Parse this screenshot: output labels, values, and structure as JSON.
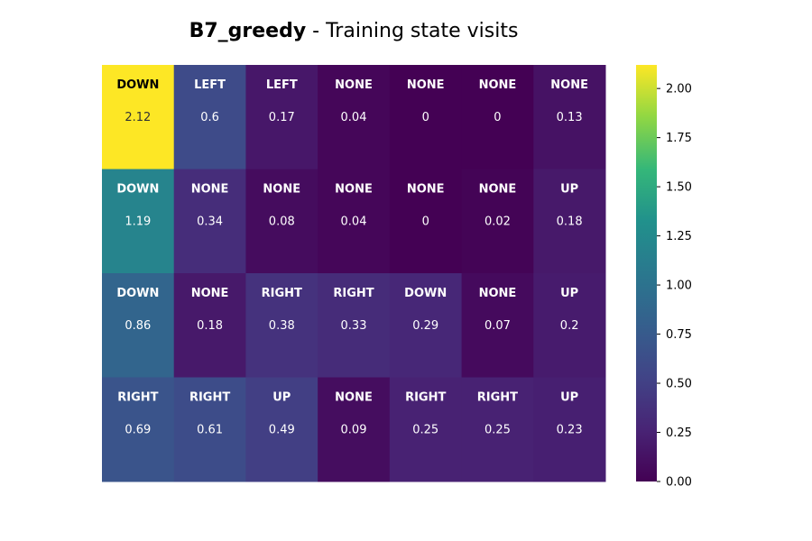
{
  "chart_data": {
    "type": "heatmap",
    "title_bold": "B7_greedy",
    "title_rest": " - Training state visits",
    "rows": 4,
    "cols": 7,
    "actions": [
      [
        "DOWN",
        "LEFT",
        "LEFT",
        "NONE",
        "NONE",
        "NONE",
        "NONE"
      ],
      [
        "DOWN",
        "NONE",
        "NONE",
        "NONE",
        "NONE",
        "NONE",
        "UP"
      ],
      [
        "DOWN",
        "NONE",
        "RIGHT",
        "RIGHT",
        "DOWN",
        "NONE",
        "UP"
      ],
      [
        "RIGHT",
        "RIGHT",
        "UP",
        "NONE",
        "RIGHT",
        "RIGHT",
        "UP"
      ]
    ],
    "values": [
      [
        2.12,
        0.6,
        0.17,
        0.04,
        0,
        0,
        0.13
      ],
      [
        1.19,
        0.34,
        0.08,
        0.04,
        0,
        0.02,
        0.18
      ],
      [
        0.86,
        0.18,
        0.38,
        0.33,
        0.29,
        0.07,
        0.2
      ],
      [
        0.69,
        0.61,
        0.49,
        0.09,
        0.25,
        0.25,
        0.23
      ]
    ],
    "value_labels": [
      [
        "2.12",
        "0.6",
        "0.17",
        "0.04",
        "0",
        "0",
        "0.13"
      ],
      [
        "1.19",
        "0.34",
        "0.08",
        "0.04",
        "0",
        "0.02",
        "0.18"
      ],
      [
        "0.86",
        "0.18",
        "0.38",
        "0.33",
        "0.29",
        "0.07",
        "0.2"
      ],
      [
        "0.69",
        "0.61",
        "0.49",
        "0.09",
        "0.25",
        "0.25",
        "0.23"
      ]
    ],
    "colormap": "viridis",
    "vmin": 0,
    "vmax": 2.12,
    "colorbar_ticks": [
      "0.00",
      "0.25",
      "0.50",
      "0.75",
      "1.00",
      "1.25",
      "1.50",
      "1.75",
      "2.00"
    ],
    "colorbar_tick_values": [
      0,
      0.25,
      0.5,
      0.75,
      1.0,
      1.25,
      1.5,
      1.75,
      2.0
    ],
    "grid": false
  }
}
